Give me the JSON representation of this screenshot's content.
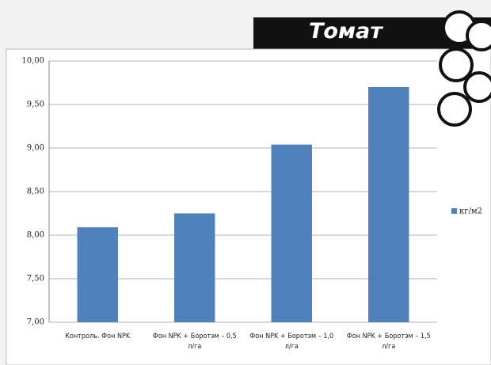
{
  "title": "Томат",
  "chart_data": {
    "type": "bar",
    "categories": [
      "Контроль. Фон NPK",
      "Фон NPK + Боротэм – 0,5 л/га",
      "Фон NPK + Боротэм – 1,0 л/га",
      "Фон NPK + Боротэм – 1,5 л/га"
    ],
    "series": [
      {
        "name": "кг/м2",
        "color": "#4f81bd",
        "values": [
          8.09,
          8.25,
          9.04,
          9.7
        ]
      }
    ],
    "ylim": [
      7,
      10
    ],
    "yticks": [
      {
        "value": 7,
        "label": "7,00"
      },
      {
        "value": 7.5,
        "label": "7,50"
      },
      {
        "value": 8,
        "label": "8,00"
      },
      {
        "value": 8.5,
        "label": "8,50"
      },
      {
        "value": 9,
        "label": "9,00"
      },
      {
        "value": 9.5,
        "label": "9,50"
      },
      {
        "value": 10,
        "label": "10,00"
      }
    ],
    "grid": true
  }
}
